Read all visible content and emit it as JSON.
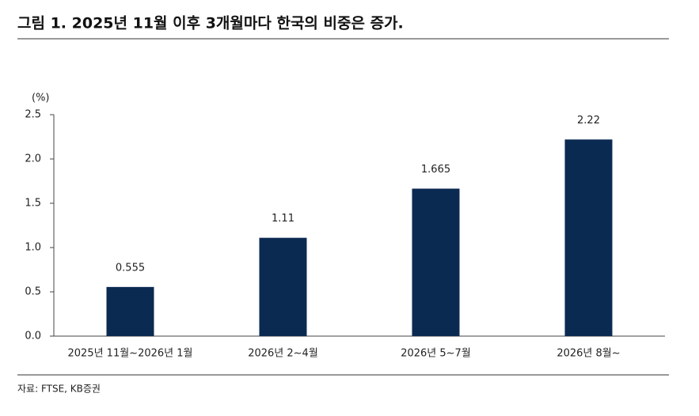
{
  "chart_data": {
    "type": "bar",
    "title": "그림 1. 2025년 11월 이후 3개월마다 한국의 비중은 증가.",
    "y_unit": "(%)",
    "categories": [
      "2025년 11월~2026년 1월",
      "2026년 2~4월",
      "2026년 5~7월",
      "2026년 8월~"
    ],
    "values": [
      0.555,
      1.11,
      1.665,
      2.22
    ],
    "color": "#0b2a52",
    "ylim": [
      0,
      2.5
    ],
    "yticks": [
      {
        "value": 0,
        "label": "0.0"
      },
      0.5,
      {
        "value": 1,
        "label": "1.0"
      },
      1.5,
      {
        "value": 2,
        "label": "2.0"
      },
      2.5
    ],
    "source": "자료: FTSE, KB증권"
  }
}
